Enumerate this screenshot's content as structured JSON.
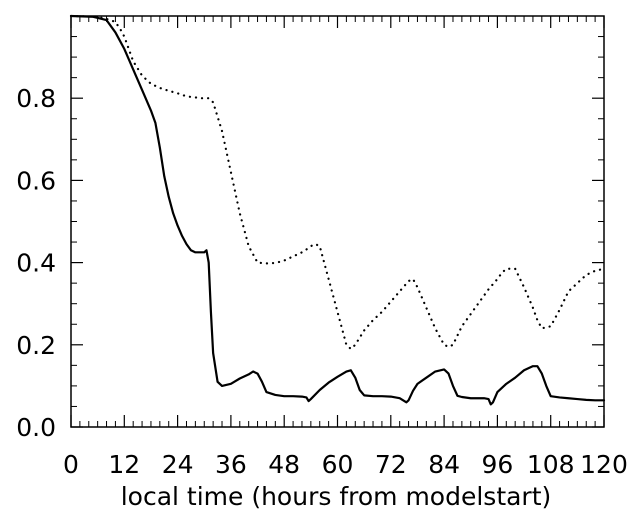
{
  "chart_data": {
    "type": "line",
    "title": "",
    "xlabel": "local time (hours from modelstart)",
    "ylabel": "",
    "xlim": [
      0,
      120
    ],
    "ylim": [
      0.0,
      1.0
    ],
    "grid": false,
    "x_ticks": [
      0,
      12,
      24,
      36,
      48,
      60,
      72,
      84,
      96,
      108,
      120
    ],
    "x_tick_labels": [
      "0",
      "12",
      "24",
      "36",
      "48",
      "60",
      "72",
      "84",
      "96",
      "108",
      "120"
    ],
    "y_ticks": [
      0.0,
      0.2,
      0.4,
      0.6,
      0.8
    ],
    "y_tick_labels": [
      "0.0",
      "0.2",
      "0.4",
      "0.6",
      "0.8"
    ],
    "series": [
      {
        "style": "solid",
        "color": "#000000",
        "x": [
          0,
          5,
          8,
          10,
          12,
          14,
          16,
          18,
          19,
          20,
          21,
          22,
          23,
          24,
          25,
          26,
          27,
          28,
          29,
          30,
          30.5,
          31,
          31.5,
          32,
          33,
          34,
          36,
          38,
          40,
          41,
          42,
          43,
          44,
          46,
          48,
          50,
          52,
          53,
          53.5,
          54,
          56,
          58,
          60,
          62,
          63,
          64,
          65,
          66,
          68,
          70,
          72,
          74,
          75.5,
          76,
          77,
          78,
          80,
          82,
          84,
          85,
          86,
          87,
          88,
          90,
          92,
          93,
          94,
          94.5,
          95,
          96,
          98,
          100,
          102,
          104,
          105,
          106,
          107,
          108,
          110,
          112,
          114,
          116,
          118,
          120
        ],
        "y": [
          1.0,
          0.998,
          0.99,
          0.96,
          0.92,
          0.87,
          0.82,
          0.77,
          0.74,
          0.68,
          0.61,
          0.56,
          0.52,
          0.49,
          0.465,
          0.445,
          0.43,
          0.425,
          0.425,
          0.425,
          0.43,
          0.4,
          0.28,
          0.18,
          0.11,
          0.1,
          0.105,
          0.118,
          0.128,
          0.135,
          0.13,
          0.11,
          0.085,
          0.078,
          0.075,
          0.075,
          0.074,
          0.072,
          0.063,
          0.068,
          0.09,
          0.108,
          0.122,
          0.135,
          0.138,
          0.12,
          0.09,
          0.077,
          0.075,
          0.075,
          0.074,
          0.07,
          0.06,
          0.065,
          0.088,
          0.105,
          0.12,
          0.135,
          0.14,
          0.13,
          0.1,
          0.076,
          0.073,
          0.07,
          0.07,
          0.07,
          0.068,
          0.055,
          0.06,
          0.085,
          0.105,
          0.12,
          0.138,
          0.148,
          0.148,
          0.13,
          0.1,
          0.075,
          0.072,
          0.07,
          0.068,
          0.066,
          0.065,
          0.065
        ]
      },
      {
        "style": "dotted",
        "color": "#000000",
        "x": [
          0,
          6,
          9,
          10,
          11,
          12,
          13,
          14,
          16,
          18,
          20,
          22,
          24,
          25,
          26,
          27,
          28,
          29,
          30,
          31,
          32,
          34,
          36,
          38,
          40,
          42,
          44,
          46,
          48,
          50,
          52,
          53,
          54,
          55,
          56,
          58,
          60,
          62,
          63,
          64,
          66,
          68,
          70,
          72,
          74,
          76,
          77,
          78,
          80,
          82,
          84,
          85,
          86,
          88,
          90,
          92,
          94,
          96,
          97,
          98,
          100,
          102,
          104,
          105,
          106,
          108,
          110,
          112,
          114,
          116,
          118,
          120
        ],
        "y": [
          1.0,
          0.998,
          0.99,
          0.985,
          0.97,
          0.95,
          0.92,
          0.89,
          0.855,
          0.835,
          0.825,
          0.818,
          0.812,
          0.808,
          0.805,
          0.803,
          0.802,
          0.8,
          0.8,
          0.8,
          0.79,
          0.72,
          0.62,
          0.52,
          0.44,
          0.4,
          0.398,
          0.399,
          0.405,
          0.415,
          0.425,
          0.432,
          0.44,
          0.445,
          0.44,
          0.36,
          0.28,
          0.2,
          0.19,
          0.2,
          0.235,
          0.26,
          0.28,
          0.305,
          0.33,
          0.355,
          0.36,
          0.34,
          0.29,
          0.24,
          0.2,
          0.195,
          0.2,
          0.245,
          0.275,
          0.305,
          0.335,
          0.36,
          0.375,
          0.385,
          0.385,
          0.34,
          0.29,
          0.26,
          0.24,
          0.245,
          0.285,
          0.33,
          0.35,
          0.37,
          0.38,
          0.385
        ]
      }
    ]
  }
}
